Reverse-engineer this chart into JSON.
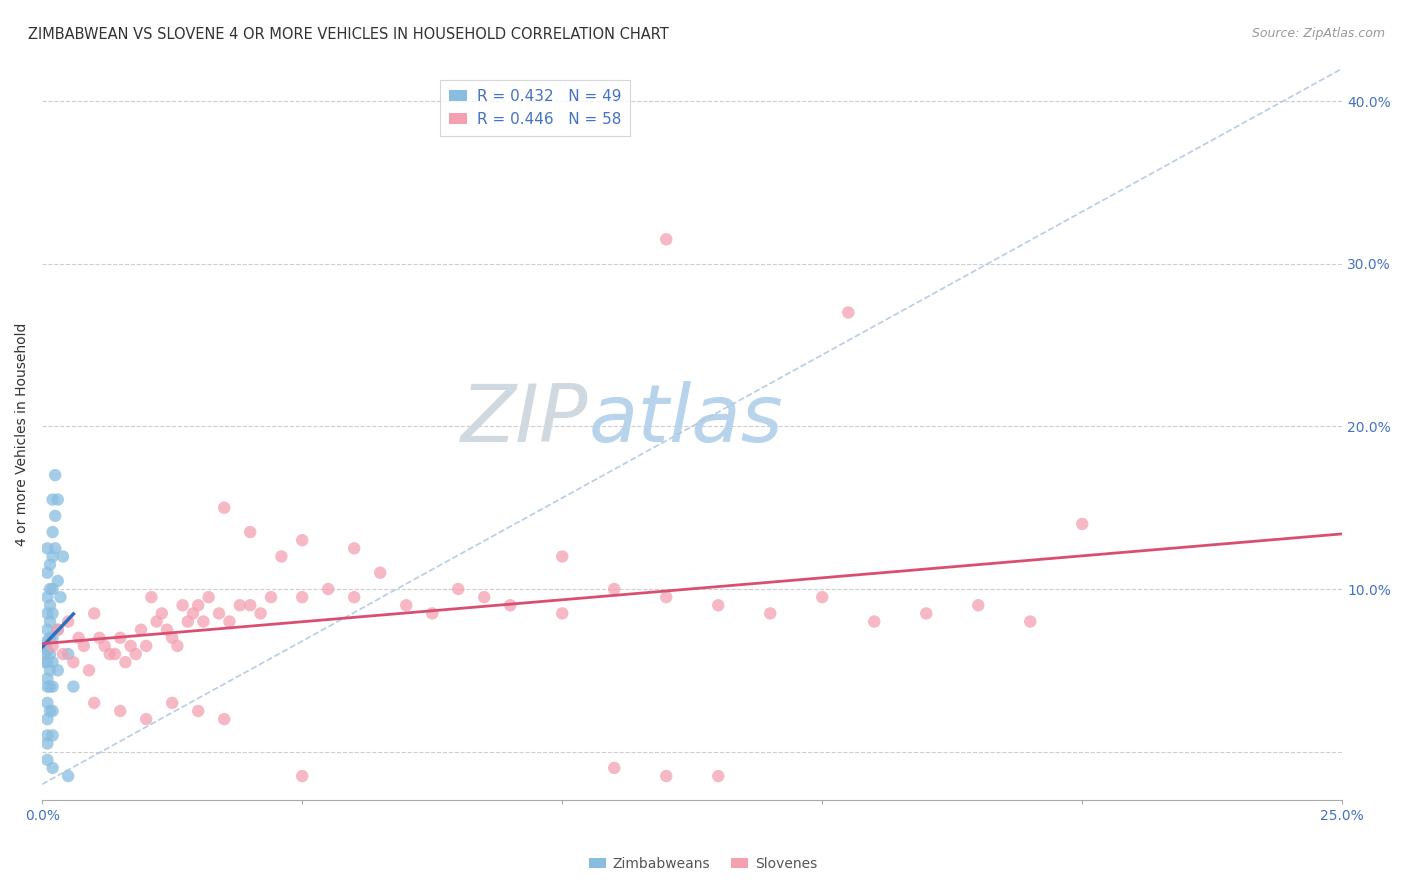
{
  "title": "ZIMBABWEAN VS SLOVENE 4 OR MORE VEHICLES IN HOUSEHOLD CORRELATION CHART",
  "source": "Source: ZipAtlas.com",
  "ylabel": "4 or more Vehicles in Household",
  "x_min": 0.0,
  "x_max": 0.25,
  "y_min": -0.03,
  "y_max": 0.42,
  "yticks": [
    0.0,
    0.1,
    0.2,
    0.3,
    0.4
  ],
  "ytick_labels": [
    "",
    "10.0%",
    "20.0%",
    "30.0%",
    "40.0%"
  ],
  "xticks": [
    0.0,
    0.05,
    0.1,
    0.15,
    0.2,
    0.25
  ],
  "xtick_labels": [
    "0.0%",
    "",
    "",
    "",
    "",
    "25.0%"
  ],
  "zim_color": "#89bde0",
  "slo_color": "#f4a0b0",
  "zim_line_color": "#2f6fbf",
  "slo_line_color": "#d94f72",
  "diagonal_color": "#b0c8e0",
  "background_color": "#ffffff",
  "tick_color": "#4472c4",
  "grid_color": "#c8c8c8",
  "watermark_zip_color": "#c8d8e8",
  "watermark_atlas_color": "#b8cfe0",
  "zim_scatter": [
    [
      0.0005,
      0.065
    ],
    [
      0.0005,
      0.06
    ],
    [
      0.0005,
      0.055
    ],
    [
      0.001,
      0.125
    ],
    [
      0.001,
      0.11
    ],
    [
      0.001,
      0.095
    ],
    [
      0.001,
      0.085
    ],
    [
      0.001,
      0.075
    ],
    [
      0.001,
      0.068
    ],
    [
      0.001,
      0.062
    ],
    [
      0.001,
      0.055
    ],
    [
      0.001,
      0.045
    ],
    [
      0.001,
      0.04
    ],
    [
      0.001,
      0.03
    ],
    [
      0.001,
      0.02
    ],
    [
      0.001,
      0.01
    ],
    [
      0.001,
      0.005
    ],
    [
      0.001,
      -0.005
    ],
    [
      0.0015,
      0.115
    ],
    [
      0.0015,
      0.1
    ],
    [
      0.0015,
      0.09
    ],
    [
      0.0015,
      0.08
    ],
    [
      0.0015,
      0.07
    ],
    [
      0.0015,
      0.06
    ],
    [
      0.0015,
      0.05
    ],
    [
      0.0015,
      0.04
    ],
    [
      0.0015,
      0.025
    ],
    [
      0.002,
      0.155
    ],
    [
      0.002,
      0.135
    ],
    [
      0.002,
      0.12
    ],
    [
      0.002,
      0.1
    ],
    [
      0.002,
      0.085
    ],
    [
      0.002,
      0.07
    ],
    [
      0.002,
      0.055
    ],
    [
      0.002,
      0.04
    ],
    [
      0.002,
      0.025
    ],
    [
      0.002,
      0.01
    ],
    [
      0.002,
      -0.01
    ],
    [
      0.0025,
      0.17
    ],
    [
      0.0025,
      0.145
    ],
    [
      0.0025,
      0.125
    ],
    [
      0.003,
      0.155
    ],
    [
      0.003,
      0.105
    ],
    [
      0.003,
      0.075
    ],
    [
      0.003,
      0.05
    ],
    [
      0.0035,
      0.095
    ],
    [
      0.004,
      0.12
    ],
    [
      0.005,
      -0.015
    ],
    [
      0.005,
      0.06
    ],
    [
      0.006,
      0.04
    ]
  ],
  "slo_scatter": [
    [
      0.002,
      0.065
    ],
    [
      0.003,
      0.075
    ],
    [
      0.004,
      0.06
    ],
    [
      0.005,
      0.08
    ],
    [
      0.006,
      0.055
    ],
    [
      0.007,
      0.07
    ],
    [
      0.008,
      0.065
    ],
    [
      0.009,
      0.05
    ],
    [
      0.01,
      0.085
    ],
    [
      0.011,
      0.07
    ],
    [
      0.012,
      0.065
    ],
    [
      0.013,
      0.06
    ],
    [
      0.014,
      0.06
    ],
    [
      0.015,
      0.07
    ],
    [
      0.016,
      0.055
    ],
    [
      0.017,
      0.065
    ],
    [
      0.018,
      0.06
    ],
    [
      0.019,
      0.075
    ],
    [
      0.02,
      0.065
    ],
    [
      0.021,
      0.095
    ],
    [
      0.022,
      0.08
    ],
    [
      0.023,
      0.085
    ],
    [
      0.024,
      0.075
    ],
    [
      0.025,
      0.07
    ],
    [
      0.026,
      0.065
    ],
    [
      0.027,
      0.09
    ],
    [
      0.028,
      0.08
    ],
    [
      0.029,
      0.085
    ],
    [
      0.03,
      0.09
    ],
    [
      0.031,
      0.08
    ],
    [
      0.032,
      0.095
    ],
    [
      0.034,
      0.085
    ],
    [
      0.036,
      0.08
    ],
    [
      0.038,
      0.09
    ],
    [
      0.04,
      0.09
    ],
    [
      0.042,
      0.085
    ],
    [
      0.044,
      0.095
    ],
    [
      0.046,
      0.12
    ],
    [
      0.05,
      0.095
    ],
    [
      0.055,
      0.1
    ],
    [
      0.06,
      0.095
    ],
    [
      0.065,
      0.11
    ],
    [
      0.07,
      0.09
    ],
    [
      0.075,
      0.085
    ],
    [
      0.08,
      0.1
    ],
    [
      0.09,
      0.09
    ],
    [
      0.1,
      0.085
    ],
    [
      0.11,
      0.1
    ],
    [
      0.12,
      0.095
    ],
    [
      0.13,
      0.09
    ],
    [
      0.14,
      0.085
    ],
    [
      0.15,
      0.095
    ],
    [
      0.16,
      0.08
    ],
    [
      0.17,
      0.085
    ],
    [
      0.18,
      0.09
    ],
    [
      0.19,
      0.08
    ],
    [
      0.12,
      0.315
    ],
    [
      0.155,
      0.27
    ],
    [
      0.035,
      0.15
    ],
    [
      0.04,
      0.135
    ],
    [
      0.05,
      0.13
    ],
    [
      0.06,
      0.125
    ],
    [
      0.1,
      0.12
    ],
    [
      0.085,
      0.095
    ],
    [
      0.01,
      0.03
    ],
    [
      0.015,
      0.025
    ],
    [
      0.02,
      0.02
    ],
    [
      0.025,
      0.03
    ],
    [
      0.03,
      0.025
    ],
    [
      0.035,
      0.02
    ],
    [
      0.11,
      -0.01
    ],
    [
      0.13,
      -0.015
    ],
    [
      0.05,
      -0.015
    ],
    [
      0.12,
      -0.015
    ],
    [
      0.2,
      0.14
    ]
  ],
  "title_fontsize": 10.5,
  "source_fontsize": 9,
  "tick_fontsize": 10,
  "ylabel_fontsize": 10,
  "legend_fontsize": 11
}
